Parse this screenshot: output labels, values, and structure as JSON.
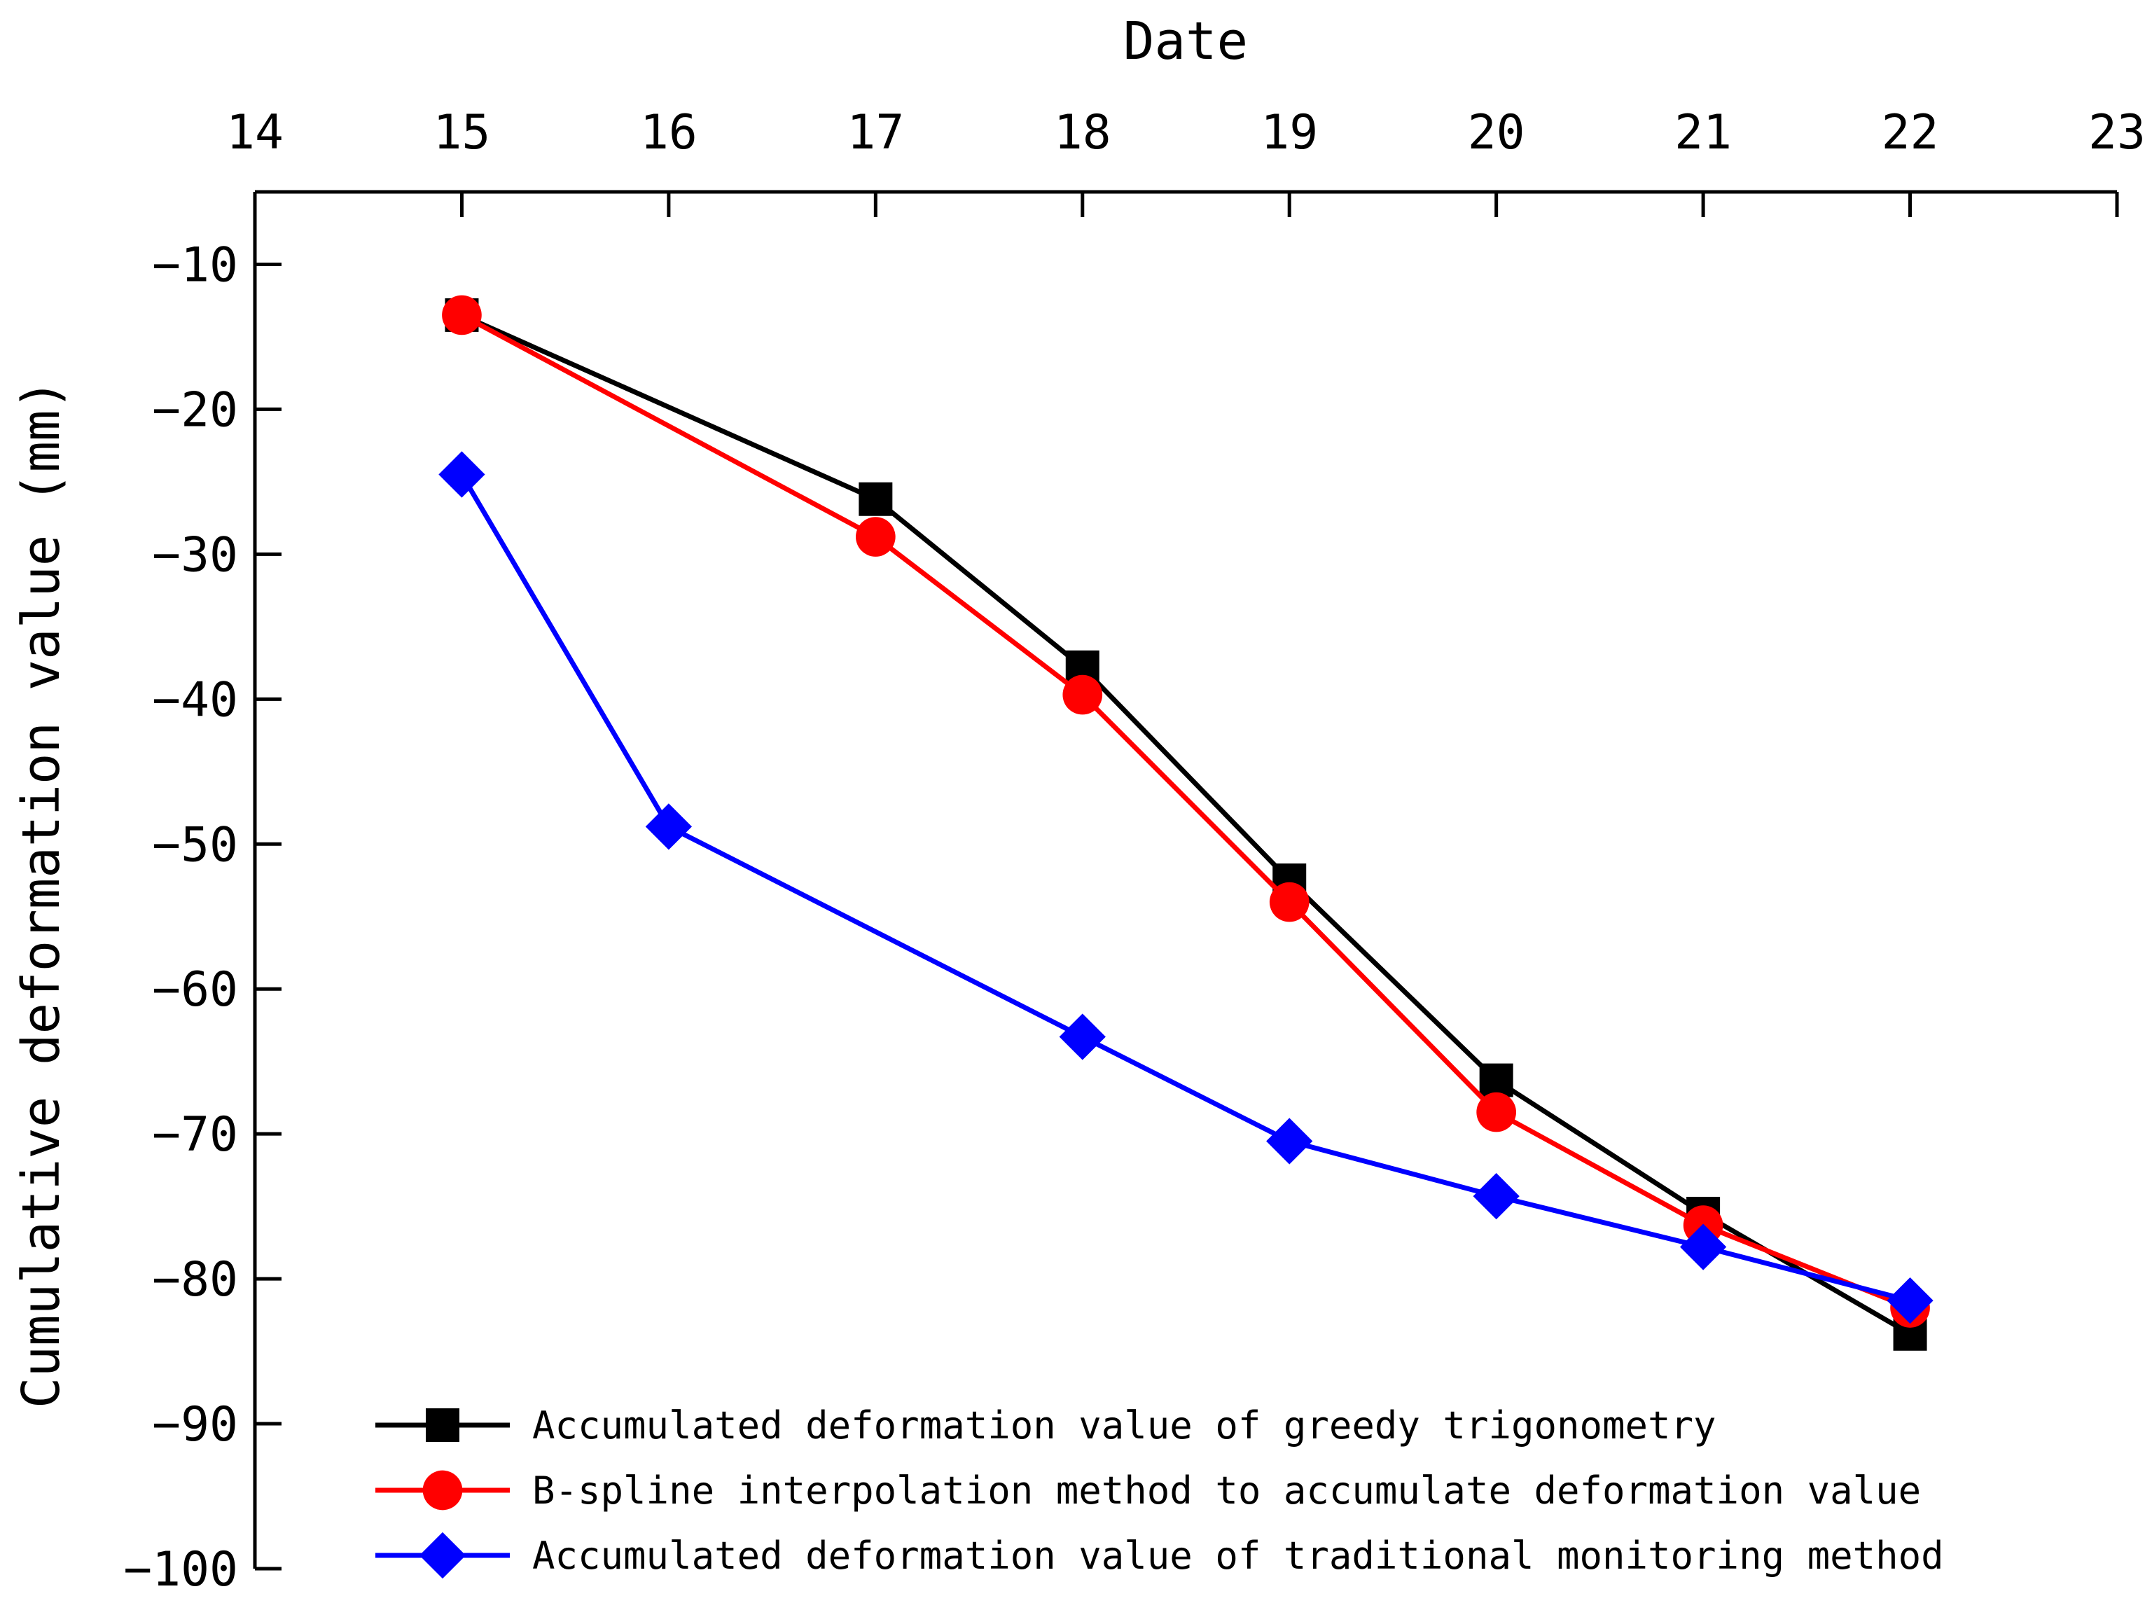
{
  "chart_data": {
    "type": "line",
    "title": "",
    "xlabel": "Date",
    "ylabel": "Cumulative deformation value (mm)",
    "x_axis_position": "top",
    "xlim": [
      14,
      23
    ],
    "ylim": [
      -100,
      -5
    ],
    "x_ticks": [
      14,
      15,
      16,
      17,
      18,
      19,
      20,
      21,
      22,
      23
    ],
    "x_tick_labels": [
      "14",
      "15",
      "16",
      "17",
      "18",
      "19",
      "20",
      "21",
      "22",
      "23"
    ],
    "y_ticks": [
      -10,
      -20,
      -30,
      -40,
      -50,
      -60,
      -70,
      -80,
      -90,
      -100
    ],
    "y_tick_labels": [
      "−10",
      "−20",
      "−30",
      "−40",
      "−50",
      "−60",
      "−70",
      "−80",
      "−90",
      "−100"
    ],
    "grid": false,
    "legend_position": "bottom-right",
    "series": [
      {
        "name": "Accumulated deformation value of greedy trigonometry",
        "color": "#000000",
        "marker": "square",
        "x": [
          15,
          17,
          18,
          19,
          20,
          21,
          22
        ],
        "values": [
          -13.5,
          -26.2,
          -37.8,
          -52.5,
          -66.3,
          -75.5,
          -83.8
        ]
      },
      {
        "name": "B-spline interpolation method to accumulate deformation value",
        "color": "#ff0000",
        "marker": "circle",
        "x": [
          15,
          17,
          18,
          19,
          20,
          21,
          22
        ],
        "values": [
          -13.5,
          -28.8,
          -39.7,
          -54.0,
          -68.5,
          -76.3,
          -82.0
        ]
      },
      {
        "name": "Accumulated deformation value of traditional monitoring method",
        "color": "#0000ff",
        "marker": "diamond",
        "x": [
          15,
          16,
          18,
          19,
          20,
          21,
          22
        ],
        "values": [
          -24.5,
          -48.8,
          -63.3,
          -70.5,
          -74.3,
          -77.8,
          -81.5
        ]
      }
    ]
  }
}
